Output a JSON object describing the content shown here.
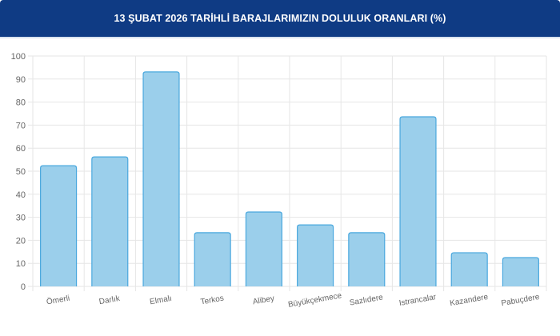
{
  "header": {
    "title": "13 ŞUBAT 2026 TARİHLİ BARAJLARIMIZIN DOLULUK ORANLARI (%)"
  },
  "chart_data": {
    "type": "bar",
    "title": "13 ŞUBAT 2026 TARİHLİ BARAJLARIMIZIN DOLULUK ORANLARI (%)",
    "categories": [
      "Ömerli",
      "Darlık",
      "Elmalı",
      "Terkos",
      "Alibey",
      "Büyükçekmece",
      "Sazlıdere",
      "Istrancalar",
      "Kazandere",
      "Pabuçdere"
    ],
    "values": [
      52.4,
      56.2,
      93.1,
      23.3,
      32.3,
      26.7,
      23.3,
      73.6,
      14.6,
      12.5
    ],
    "ylim": [
      0,
      100
    ],
    "yticks": [
      0,
      10,
      20,
      30,
      40,
      50,
      60,
      70,
      80,
      90,
      100
    ],
    "grid": true,
    "colors": {
      "bar_fill": "#9bcfeb",
      "bar_border": "#4aa8de",
      "header": "#0f3b84"
    }
  }
}
